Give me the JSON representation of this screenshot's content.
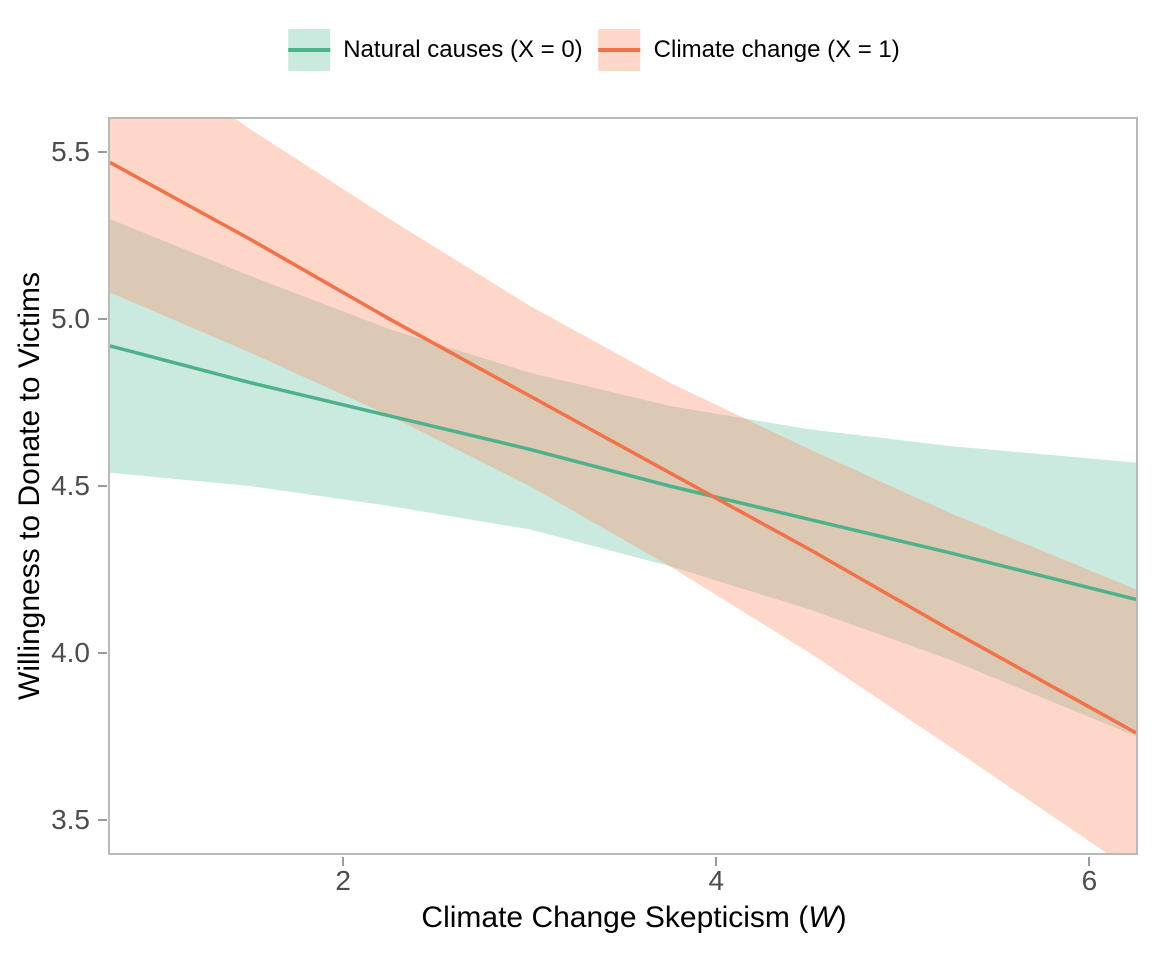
{
  "chart_data": {
    "type": "line",
    "title": "",
    "xlabel_prefix": "Climate Change Skepticism (",
    "xlabel_var": "W",
    "xlabel_suffix": ")",
    "ylabel": "Willingness to Donate to Victims",
    "xlim": [
      0.75,
      6.25
    ],
    "ylim": [
      3.4,
      5.6
    ],
    "xticks": [
      2,
      4,
      6
    ],
    "xtick_labels": [
      "2",
      "4",
      "6"
    ],
    "yticks": [
      3.5,
      4.0,
      4.5,
      5.0,
      5.5
    ],
    "ytick_labels": [
      "3.5",
      "4.0",
      "4.5",
      "5.0",
      "5.5"
    ],
    "grid": false,
    "legend_position": "top",
    "x": [
      0.75,
      1.5,
      2.25,
      3.0,
      3.75,
      4.5,
      5.25,
      6.25
    ],
    "series": [
      {
        "name": "Natural causes (X = 0)",
        "slug": "natural-causes",
        "line_color": "#4DB28C",
        "ribbon_fill": "rgba(102,194,165,0.35)",
        "fit": [
          4.92,
          4.81,
          4.71,
          4.61,
          4.5,
          4.4,
          4.3,
          4.16
        ],
        "lower": [
          4.54,
          4.5,
          4.44,
          4.37,
          4.26,
          4.13,
          3.98,
          3.75
        ],
        "upper": [
          5.3,
          5.13,
          4.97,
          4.84,
          4.74,
          4.67,
          4.62,
          4.57
        ]
      },
      {
        "name": "Climate change (X = 1)",
        "slug": "climate-change",
        "line_color": "#F27148",
        "ribbon_fill": "rgba(252,141,98,0.35)",
        "fit": [
          5.47,
          5.24,
          5.0,
          4.77,
          4.54,
          4.31,
          4.07,
          3.76
        ],
        "lower": [
          5.08,
          4.9,
          4.71,
          4.5,
          4.26,
          4.0,
          3.72,
          3.34
        ],
        "upper": [
          5.86,
          5.57,
          5.3,
          5.04,
          4.81,
          4.61,
          4.42,
          4.19
        ]
      }
    ],
    "colors": {
      "panel_border": "#b9b9b9",
      "tick_mark": "#9b9b9b",
      "tick_label": "#4d4d4d",
      "axis_title": "#000000"
    }
  }
}
